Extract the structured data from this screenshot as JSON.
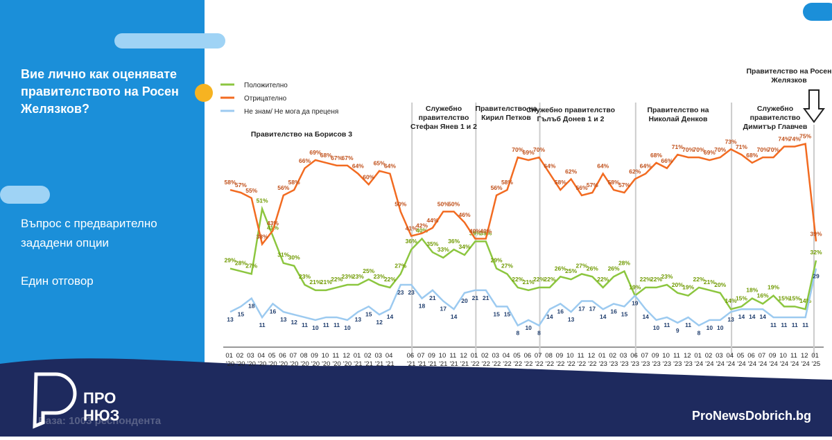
{
  "question": "Вие лично как оценявате правителството на Росен Желязков?",
  "subtitle": "Въпрос с предварително зададени опции",
  "note": "Един отговор",
  "base": "База: 1003 респондента",
  "brand": {
    "logo_top": "ПРО",
    "logo_bottom": "НЮЗ",
    "site": "ProNewsDobrich.bg"
  },
  "chart_data": {
    "type": "line",
    "categories": [
      "01 '20",
      "02 '20",
      "03 '20",
      "04 '20",
      "05 '20",
      "06 '20",
      "07 '20",
      "08 '20",
      "09 '20",
      "10 '20",
      "11 '20",
      "12 '20",
      "01 '21",
      "02 '21",
      "03 '21",
      "04 '21",
      null,
      "06 '21",
      "07 '21",
      "09 '21",
      "10 '21",
      "11 '21",
      "12 '21",
      "01 '22",
      "02 '22",
      "03 '22",
      "04 '22",
      "05 '22",
      "06 '22",
      "07 '22",
      "08 '22",
      "09 '22",
      "10 '22",
      "11 '22",
      "12 '22",
      "01 '23",
      "02 '23",
      "03 '23",
      "06 '23",
      "07 '23",
      "09 '23",
      "10 '23",
      "11 '23",
      "12 '23",
      "01 '24",
      "02 '24",
      "03 '24",
      "04 '24",
      "05 '24",
      "06 '24",
      "07 '24",
      "09 '24",
      "10 '24",
      "11 '24",
      "12 '24",
      "01 '25"
    ],
    "ylim": [
      0,
      80
    ],
    "series": [
      {
        "name": "Положително",
        "color": "#8cc63f",
        "label_color": "#6f9a00",
        "values": [
          29,
          28,
          27,
          51,
          41,
          31,
          30,
          23,
          21,
          21,
          22,
          23,
          23,
          25,
          23,
          22,
          27,
          36,
          40,
          35,
          33,
          36,
          34,
          39,
          39,
          29,
          27,
          22,
          21,
          22,
          22,
          26,
          25,
          27,
          26,
          22,
          26,
          28,
          19,
          22,
          22,
          23,
          20,
          19,
          22,
          21,
          20,
          14,
          15,
          18,
          16,
          19,
          15,
          15,
          14,
          32
        ],
        "value_labels": [
          "29%",
          "28%",
          "27%",
          "51%",
          "41%",
          "31%",
          "30%",
          "23%",
          "21%",
          "21%",
          "22%",
          "23%",
          "23%",
          "25%",
          "23%",
          "22%",
          "27%",
          "36%",
          "40%",
          "35%",
          "33%",
          "36%",
          "34%",
          "39%",
          "39%",
          "29%",
          "27%",
          "22%",
          "21%",
          "22%",
          "22%",
          "26%",
          "25%",
          "27%",
          "26%",
          "22%",
          "26%",
          "28%",
          "19%",
          "22%",
          "22%",
          "23%",
          "20%",
          "19%",
          "22%",
          "21%",
          "20%",
          "14%",
          "15%",
          "18%",
          "16%",
          "19%",
          "15%",
          "15%",
          "14%",
          "32%"
        ]
      },
      {
        "name": "Отрицателно",
        "color": "#f26b21",
        "label_color": "#c0501a",
        "values": [
          58,
          57,
          55,
          38,
          43,
          56,
          58,
          66,
          69,
          68,
          67,
          67,
          64,
          60,
          65,
          64,
          50,
          41,
          42,
          44,
          50,
          50,
          46,
          40,
          40,
          56,
          58,
          70,
          69,
          70,
          64,
          58,
          62,
          56,
          57,
          64,
          58,
          57,
          62,
          64,
          68,
          66,
          71,
          70,
          70,
          69,
          70,
          73,
          71,
          68,
          70,
          70,
          74,
          74,
          75,
          39
        ],
        "value_labels": [
          "58%",
          "57%",
          "55%",
          "38%",
          "43%",
          "56%",
          "58%",
          "66%",
          "69%",
          "68%",
          "67%",
          "67%",
          "64%",
          "60%",
          "65%",
          "64%",
          "50%",
          "41%",
          "42%",
          "44%",
          "50%",
          "50%",
          "46%",
          "40%",
          "40%",
          "56%",
          "58%",
          "70%",
          "69%",
          "70%",
          "64%",
          "58%",
          "62%",
          "56%",
          "57%",
          "64%",
          "58%",
          "57%",
          "62%",
          "64%",
          "68%",
          "66%",
          "71%",
          "70%",
          "70%",
          "69%",
          "70%",
          "73%",
          "71%",
          "68%",
          "70%",
          "70%",
          "74%",
          "74%",
          "75%",
          "39%"
        ]
      },
      {
        "name": "Не знам/ Не мога да преценя",
        "color": "#9ccaf0",
        "label_color": "#1f3d6d",
        "values": [
          13,
          15,
          18,
          11,
          16,
          13,
          12,
          11,
          10,
          11,
          11,
          10,
          13,
          15,
          12,
          14,
          23,
          23,
          18,
          21,
          17,
          14,
          20,
          21,
          21,
          15,
          15,
          8,
          10,
          8,
          14,
          16,
          13,
          17,
          17,
          14,
          16,
          15,
          19,
          14,
          10,
          11,
          9,
          11,
          8,
          10,
          10,
          13,
          14,
          14,
          14,
          11,
          11,
          11,
          11,
          29
        ]
      }
    ],
    "annotations": [
      [
        "Правителство на Борисов 3"
      ],
      [
        "Служебно",
        "правителство",
        "Стефан Янев 1 и 2"
      ],
      [
        "Правителство на",
        "Кирил Петков"
      ],
      [
        "Служебно правителство",
        "Гълъб Донев 1 и 2"
      ],
      [
        "Правителство на",
        "Николай Денков"
      ],
      [
        "Служебно",
        "правителство",
        "Димитър Главчев"
      ],
      [
        "Правителство на Росен",
        "Желязков"
      ]
    ]
  }
}
